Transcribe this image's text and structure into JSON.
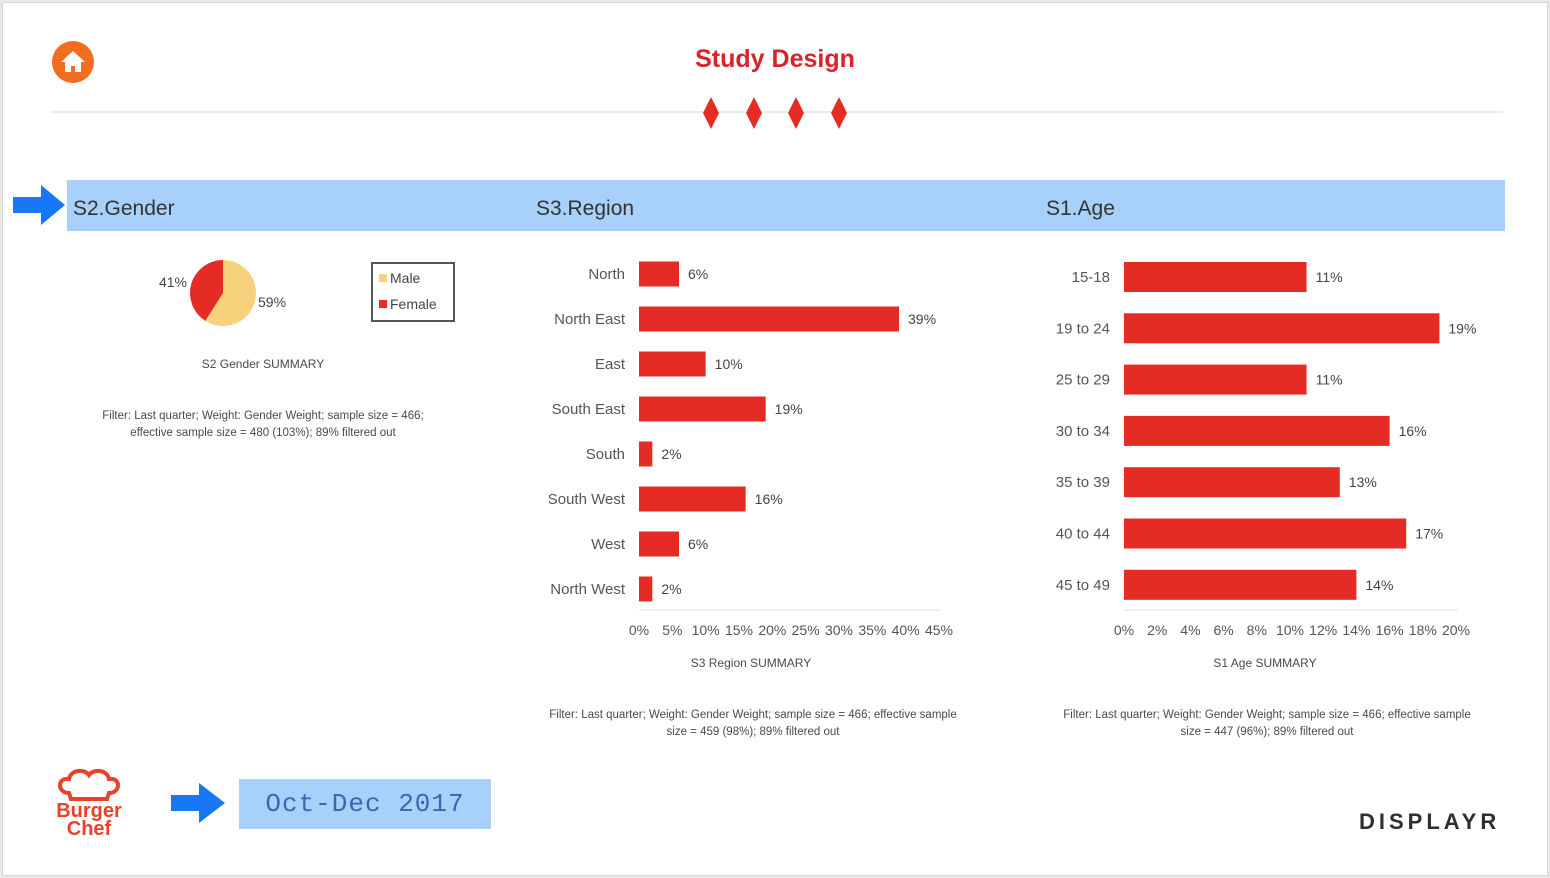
{
  "header": {
    "title": "Study Design"
  },
  "sections": {
    "gender": "S2.Gender",
    "region": "S3.Region",
    "age": "S1.Age"
  },
  "footer": {
    "date": "Oct-Dec 2017",
    "brand": "DISPLAYR",
    "logo_text_1": "Burger",
    "logo_text_2": "Chef"
  },
  "colors": {
    "bar": "#e42b24",
    "male": "#f7d17b",
    "female": "#e42b24",
    "band": "#a7d0fb",
    "title": "#d8232a",
    "home": "#f26d21",
    "arrow": "#1777f4"
  },
  "icons": {
    "home": "home-icon",
    "arrow": "arrow-right-icon",
    "diamond": "diamond-icon"
  },
  "chart_data": [
    {
      "type": "pie",
      "categories": [
        "Male",
        "Female"
      ],
      "values": [
        59,
        41
      ],
      "labels": [
        "59%",
        "41%"
      ],
      "legend": [
        "Male",
        "Female"
      ],
      "legend_placement": "right",
      "summary": "S2 Gender SUMMARY",
      "note": "Filter: Last quarter; Weight: Gender Weight; sample size = 466; effective sample size = 480 (103%); 89% filtered out"
    },
    {
      "type": "bar",
      "orientation": "horizontal",
      "categories": [
        "North",
        "North East",
        "East",
        "South East",
        "South",
        "South West",
        "West",
        "North West"
      ],
      "values": [
        6,
        39,
        10,
        19,
        2,
        16,
        6,
        2
      ],
      "labels": [
        "6%",
        "39%",
        "10%",
        "19%",
        "2%",
        "16%",
        "6%",
        "2%"
      ],
      "xlim": [
        0,
        45
      ],
      "ticks": [
        "0%",
        "5%",
        "10%",
        "15%",
        "20%",
        "25%",
        "30%",
        "35%",
        "40%",
        "45%"
      ],
      "grid": false,
      "summary": "S3 Region SUMMARY",
      "note": "Filter: Last quarter; Weight: Gender Weight; sample size = 466; effective sample size = 459 (98%); 89% filtered out"
    },
    {
      "type": "bar",
      "orientation": "horizontal",
      "categories": [
        "15-18",
        "19 to 24",
        "25 to 29",
        "30 to 34",
        "35 to 39",
        "40 to 44",
        "45 to 49"
      ],
      "values": [
        11,
        19,
        11,
        16,
        13,
        17,
        14
      ],
      "labels": [
        "11%",
        "19%",
        "11%",
        "16%",
        "13%",
        "17%",
        "14%"
      ],
      "xlim": [
        0,
        20
      ],
      "ticks": [
        "0%",
        "2%",
        "4%",
        "6%",
        "8%",
        "10%",
        "12%",
        "14%",
        "16%",
        "18%",
        "20%"
      ],
      "grid": false,
      "summary": "S1 Age SUMMARY",
      "note": "Filter: Last quarter; Weight: Gender Weight; sample size = 466; effective sample size = 447 (96%); 89% filtered out"
    }
  ]
}
